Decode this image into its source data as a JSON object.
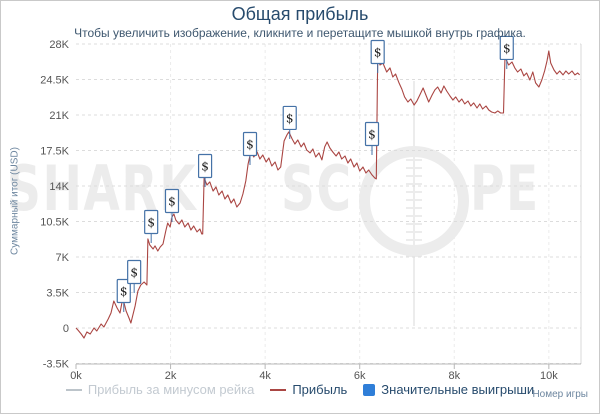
{
  "colors": {
    "title": "#274b6d",
    "subtitle": "#3e576f",
    "axis_text": "#555555",
    "axis_title_text": "#6d869f",
    "grid": "#dcdcdc",
    "vgrid": "#ebebeb",
    "axis_line": "#b8b8b8",
    "plot_right_border": "#d9d9d9",
    "watermark": "#ececec",
    "frame_border": "#c9c9c9",
    "legend_text": "#274b6d",
    "legend_hidden_text": "#c3cad1",
    "marker_border": "#4572a7",
    "marker_glyph": "#1a1a1a"
  },
  "watermark": {
    "left": "SHARK",
    "mid": "SC",
    "right": "PE"
  },
  "chart_data": {
    "type": "line",
    "title": "Общая прибыль",
    "subtitle": "Чтобы увеличить изображение, кликните и перетащите мышкой внутрь графика.",
    "xlabel": "Номер игры",
    "ylabel": "Суммарный итог (USD)",
    "y_unit": "thousands of USD",
    "xlim": [
      0,
      10.68
    ],
    "ylim": [
      -3.5,
      28
    ],
    "grid": true,
    "legend_position": "bottom",
    "x_ticks": [
      {
        "value": 0,
        "label": "0k"
      },
      {
        "value": 2,
        "label": "2k"
      },
      {
        "value": 4,
        "label": "4k"
      },
      {
        "value": 6,
        "label": "6k"
      },
      {
        "value": 8,
        "label": "8k"
      },
      {
        "value": 10,
        "label": "10k"
      }
    ],
    "y_ticks": [
      {
        "value": 28,
        "label": "28K"
      },
      {
        "value": 24.5,
        "label": "24.5K"
      },
      {
        "value": 21,
        "label": "21K"
      },
      {
        "value": 17.5,
        "label": "17.5K"
      },
      {
        "value": 14,
        "label": "14K"
      },
      {
        "value": 10.5,
        "label": "10.5K"
      },
      {
        "value": 7,
        "label": "7K"
      },
      {
        "value": 3.5,
        "label": "3.5K"
      },
      {
        "value": 0,
        "label": "0"
      },
      {
        "value": -3.5,
        "label": "-3.5K"
      }
    ],
    "series": [
      {
        "name": "Прибыль за минусом рейка",
        "color": "#bcc4ca",
        "visible": false,
        "points": []
      },
      {
        "name": "Прибыль",
        "color": "#AA4643",
        "visible": true,
        "points": [
          [
            0,
            0
          ],
          [
            0.04,
            -0.2
          ],
          [
            0.11,
            -0.59
          ],
          [
            0.17,
            -0.99
          ],
          [
            0.23,
            -0.39
          ],
          [
            0.3,
            -0.59
          ],
          [
            0.38,
            0
          ],
          [
            0.44,
            -0.3
          ],
          [
            0.53,
            0.39
          ],
          [
            0.59,
            0.1
          ],
          [
            0.68,
            0.89
          ],
          [
            0.74,
            1.48
          ],
          [
            0.8,
            2.66
          ],
          [
            0.87,
            1.97
          ],
          [
            0.93,
            1.48
          ],
          [
            0.99,
            2.96
          ],
          [
            1.06,
            1.68
          ],
          [
            1.12,
            0.99
          ],
          [
            1.16,
            0.49
          ],
          [
            1.25,
            2.17
          ],
          [
            1.31,
            3.65
          ],
          [
            1.37,
            4.24
          ],
          [
            1.44,
            4.54
          ],
          [
            1.5,
            4.24
          ],
          [
            1.52,
            8.78
          ],
          [
            1.56,
            8.18
          ],
          [
            1.63,
            7.79
          ],
          [
            1.67,
            8.09
          ],
          [
            1.73,
            7.59
          ],
          [
            1.78,
            7.99
          ],
          [
            1.84,
            8.28
          ],
          [
            1.9,
            9.57
          ],
          [
            1.94,
            10.35
          ],
          [
            1.99,
            9.96
          ],
          [
            2.03,
            10.94
          ],
          [
            2.07,
            11.24
          ],
          [
            2.11,
            10.65
          ],
          [
            2.18,
            10.25
          ],
          [
            2.24,
            10.65
          ],
          [
            2.3,
            9.96
          ],
          [
            2.37,
            10.35
          ],
          [
            2.43,
            9.66
          ],
          [
            2.49,
            10.06
          ],
          [
            2.56,
            9.47
          ],
          [
            2.62,
            9.76
          ],
          [
            2.66,
            9.27
          ],
          [
            2.68,
            9.27
          ],
          [
            2.71,
            14.79
          ],
          [
            2.77,
            14.1
          ],
          [
            2.83,
            14.4
          ],
          [
            2.9,
            13.51
          ],
          [
            2.96,
            13.9
          ],
          [
            3.02,
            13.11
          ],
          [
            3.09,
            13.51
          ],
          [
            3.15,
            12.72
          ],
          [
            3.21,
            13.11
          ],
          [
            3.28,
            12.32
          ],
          [
            3.34,
            12.72
          ],
          [
            3.4,
            11.93
          ],
          [
            3.47,
            12.32
          ],
          [
            3.53,
            13.21
          ],
          [
            3.59,
            14.49
          ],
          [
            3.64,
            16.17
          ],
          [
            3.7,
            17.45
          ],
          [
            3.76,
            16.86
          ],
          [
            3.83,
            17.35
          ],
          [
            3.89,
            16.66
          ],
          [
            3.95,
            17.06
          ],
          [
            4.02,
            16.37
          ],
          [
            4.08,
            16.76
          ],
          [
            4.14,
            15.97
          ],
          [
            4.21,
            16.37
          ],
          [
            4.27,
            15.58
          ],
          [
            4.33,
            15.87
          ],
          [
            4.4,
            18.44
          ],
          [
            4.46,
            19.03
          ],
          [
            4.5,
            19.33
          ],
          [
            4.57,
            18.64
          ],
          [
            4.63,
            18.14
          ],
          [
            4.69,
            18.54
          ],
          [
            4.76,
            17.85
          ],
          [
            4.82,
            18.24
          ],
          [
            4.88,
            17.55
          ],
          [
            4.95,
            17.26
          ],
          [
            5.01,
            17.65
          ],
          [
            5.07,
            16.86
          ],
          [
            5.14,
            17.26
          ],
          [
            5.2,
            16.57
          ],
          [
            5.26,
            17.85
          ],
          [
            5.31,
            18.34
          ],
          [
            5.37,
            17.75
          ],
          [
            5.43,
            17.35
          ],
          [
            5.5,
            16.96
          ],
          [
            5.56,
            17.35
          ],
          [
            5.62,
            16.66
          ],
          [
            5.69,
            16.96
          ],
          [
            5.75,
            16.27
          ],
          [
            5.81,
            16.66
          ],
          [
            5.88,
            15.87
          ],
          [
            5.94,
            16.27
          ],
          [
            6,
            15.48
          ],
          [
            6.07,
            15.87
          ],
          [
            6.13,
            15.28
          ],
          [
            6.19,
            15.58
          ],
          [
            6.26,
            15.09
          ],
          [
            6.32,
            14.79
          ],
          [
            6.35,
            14.7
          ],
          [
            6.38,
            26.62
          ],
          [
            6.43,
            25.93
          ],
          [
            6.49,
            26.13
          ],
          [
            6.57,
            25.24
          ],
          [
            6.64,
            25.64
          ],
          [
            6.7,
            24.75
          ],
          [
            6.76,
            25.04
          ],
          [
            6.83,
            24.16
          ],
          [
            6.89,
            23.56
          ],
          [
            6.95,
            22.78
          ],
          [
            7.02,
            22.28
          ],
          [
            7.08,
            22.58
          ],
          [
            7.15,
            21.99
          ],
          [
            7.21,
            22.38
          ],
          [
            7.27,
            22.97
          ],
          [
            7.34,
            23.66
          ],
          [
            7.4,
            22.97
          ],
          [
            7.46,
            22.28
          ],
          [
            7.53,
            22.97
          ],
          [
            7.59,
            23.47
          ],
          [
            7.65,
            23.76
          ],
          [
            7.72,
            23.17
          ],
          [
            7.78,
            23.86
          ],
          [
            7.84,
            23.37
          ],
          [
            7.91,
            22.87
          ],
          [
            7.97,
            22.48
          ],
          [
            8.03,
            22.78
          ],
          [
            8.1,
            22.28
          ],
          [
            8.16,
            22.58
          ],
          [
            8.22,
            22.09
          ],
          [
            8.29,
            22.38
          ],
          [
            8.35,
            21.89
          ],
          [
            8.41,
            22.19
          ],
          [
            8.48,
            21.69
          ],
          [
            8.54,
            22.09
          ],
          [
            8.6,
            21.59
          ],
          [
            8.67,
            21.89
          ],
          [
            8.73,
            21.49
          ],
          [
            8.79,
            21.3
          ],
          [
            8.86,
            21.2
          ],
          [
            8.92,
            21.4
          ],
          [
            8.98,
            21.2
          ],
          [
            9.04,
            21.2
          ],
          [
            9.07,
            26.42
          ],
          [
            9.09,
            26.52
          ],
          [
            9.15,
            25.93
          ],
          [
            9.22,
            26.23
          ],
          [
            9.28,
            25.64
          ],
          [
            9.34,
            25.24
          ],
          [
            9.41,
            25.54
          ],
          [
            9.47,
            24.85
          ],
          [
            9.53,
            25.14
          ],
          [
            9.6,
            24.45
          ],
          [
            9.66,
            25.24
          ],
          [
            9.72,
            24.16
          ],
          [
            9.79,
            23.76
          ],
          [
            9.85,
            24.45
          ],
          [
            9.91,
            25.34
          ],
          [
            9.96,
            26.32
          ],
          [
            10,
            27.31
          ],
          [
            10.04,
            26.13
          ],
          [
            10.11,
            25.44
          ],
          [
            10.17,
            25.04
          ],
          [
            10.23,
            25.34
          ],
          [
            10.3,
            24.95
          ],
          [
            10.36,
            25.34
          ],
          [
            10.42,
            25.04
          ],
          [
            10.49,
            25.34
          ],
          [
            10.55,
            24.95
          ],
          [
            10.61,
            25.14
          ],
          [
            10.65,
            24.95
          ]
        ]
      }
    ],
    "markers": {
      "name": "Значительные выигрыши",
      "symbol": "$",
      "color": "#2f7ed8",
      "points": [
        [
          1.01,
          3.65
        ],
        [
          1.23,
          5.52
        ],
        [
          1.59,
          10.45
        ],
        [
          2.03,
          12.52
        ],
        [
          2.73,
          15.97
        ],
        [
          3.68,
          18.14
        ],
        [
          4.52,
          20.71
        ],
        [
          6.26,
          19.13
        ],
        [
          6.38,
          27.21
        ],
        [
          9.11,
          27.61
        ]
      ]
    }
  }
}
